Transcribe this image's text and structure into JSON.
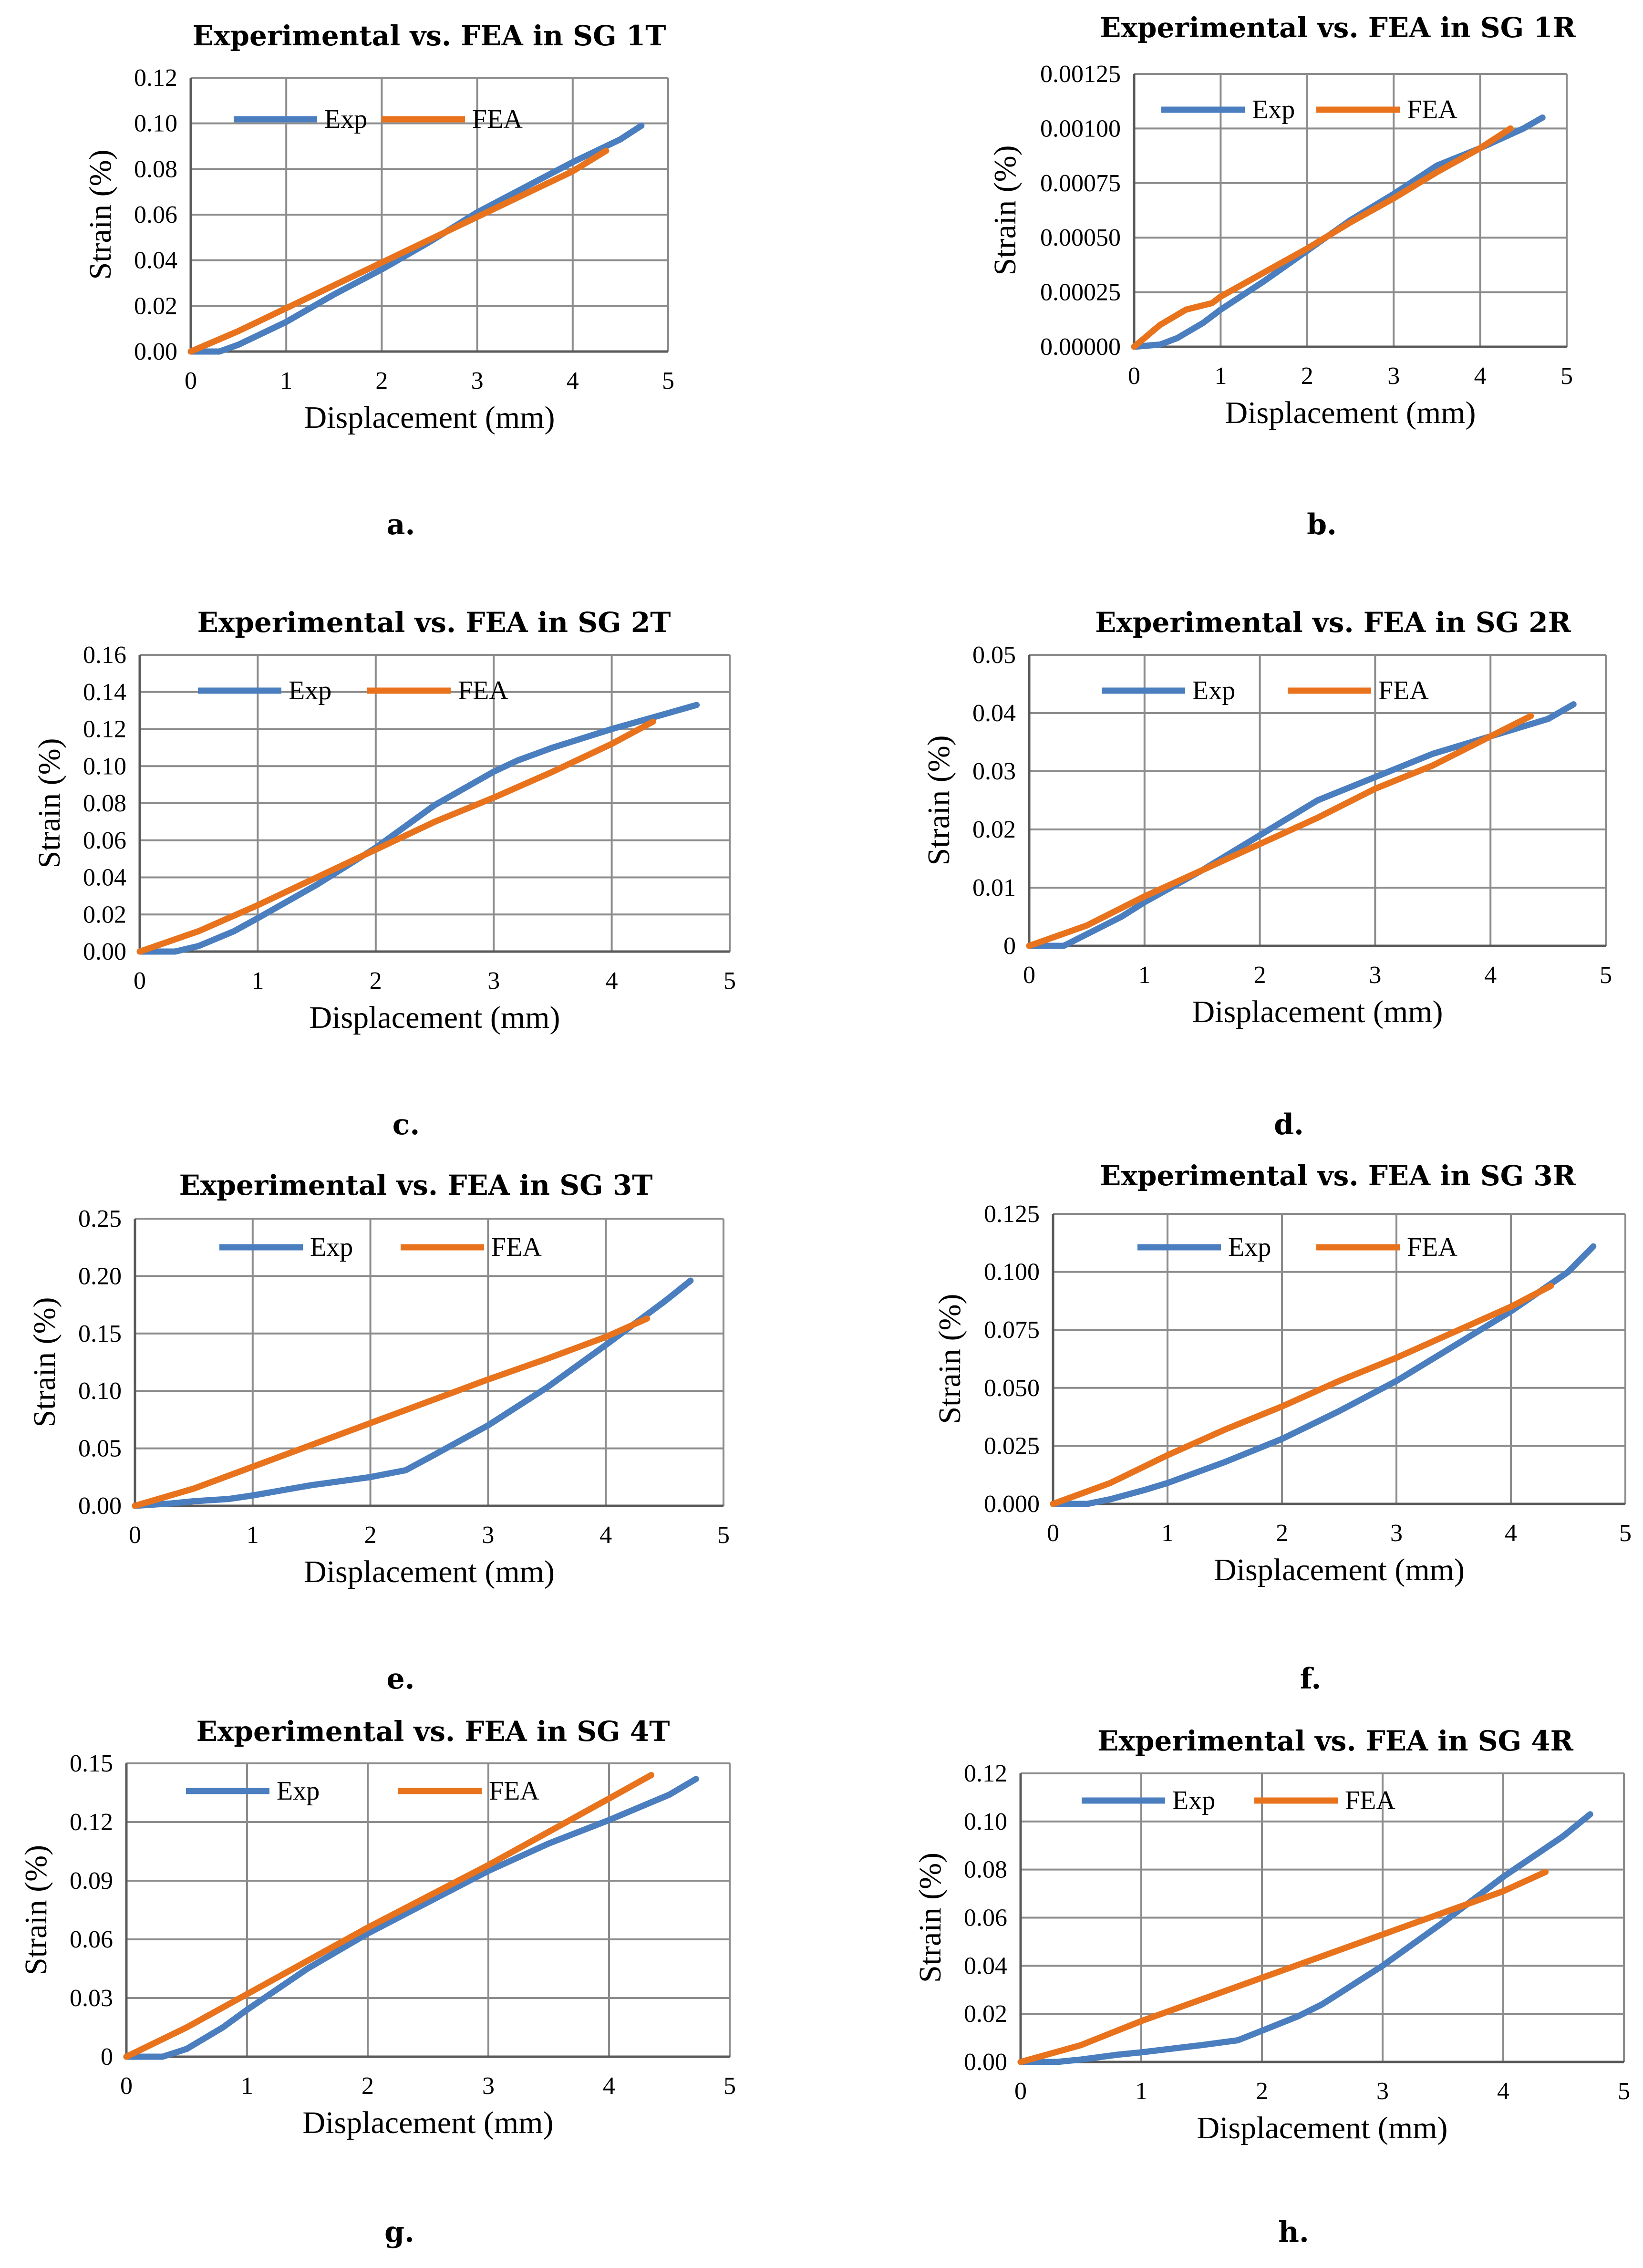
{
  "colors": {
    "exp": "#4a7ebf",
    "fea": "#e8731c",
    "grid": "#8c8c8c",
    "axis": "#595959"
  },
  "chart_data": [
    {
      "type": "line",
      "caption": "a.",
      "title": "Experimental vs. FEA in SG 1T",
      "xlabel": "Displacement (mm)",
      "ylabel": "Strain (%)",
      "xlim": [
        0,
        5
      ],
      "ylim": [
        0,
        0.12
      ],
      "xticks": [
        "0",
        "1",
        "2",
        "3",
        "4",
        "5"
      ],
      "yticks": [
        "0.00",
        "0.02",
        "0.04",
        "0.06",
        "0.08",
        "0.10",
        "0.12"
      ],
      "series": [
        {
          "name": "Exp",
          "x": [
            0,
            0.3,
            0.5,
            0.8,
            1.0,
            1.5,
            2.0,
            2.5,
            3.0,
            3.5,
            4.0,
            4.5,
            4.72
          ],
          "y": [
            0,
            0,
            0.003,
            0.009,
            0.013,
            0.025,
            0.036,
            0.048,
            0.061,
            0.072,
            0.083,
            0.093,
            0.099
          ]
        },
        {
          "name": "FEA",
          "x": [
            0,
            0.5,
            1.0,
            1.5,
            2.0,
            2.5,
            3.0,
            3.5,
            4.0,
            4.35
          ],
          "y": [
            0,
            0.009,
            0.019,
            0.029,
            0.039,
            0.049,
            0.059,
            0.069,
            0.079,
            0.088
          ]
        }
      ]
    },
    {
      "type": "line",
      "caption": "b.",
      "title": "Experimental vs. FEA in SG 1R",
      "xlabel": "Displacement (mm)",
      "ylabel": "Strain (%)",
      "xlim": [
        0,
        5
      ],
      "ylim": [
        0,
        0.00125
      ],
      "xticks": [
        "0",
        "1",
        "2",
        "3",
        "4",
        "5"
      ],
      "yticks": [
        "0.00000",
        "0.00025",
        "0.00050",
        "0.00075",
        "0.00100",
        "0.00125"
      ],
      "series": [
        {
          "name": "Exp",
          "x": [
            0,
            0.3,
            0.5,
            0.8,
            1.0,
            1.5,
            2.0,
            2.5,
            3.0,
            3.5,
            4.0,
            4.5,
            4.72
          ],
          "y": [
            0,
            1e-05,
            4e-05,
            0.00011,
            0.00017,
            0.0003,
            0.00044,
            0.00058,
            0.0007,
            0.00083,
            0.00091,
            0.001,
            0.00105
          ]
        },
        {
          "name": "FEA",
          "x": [
            0,
            0.3,
            0.6,
            0.9,
            1.0,
            1.5,
            2.0,
            2.5,
            3.0,
            3.5,
            4.0,
            4.35
          ],
          "y": [
            0,
            0.0001,
            0.00017,
            0.0002,
            0.00023,
            0.00034,
            0.00045,
            0.00057,
            0.00068,
            0.0008,
            0.00091,
            0.001
          ]
        }
      ]
    },
    {
      "type": "line",
      "caption": "c.",
      "title": "Experimental vs. FEA in SG 2T",
      "xlabel": "Displacement (mm)",
      "ylabel": "Strain (%)",
      "xlim": [
        0,
        5
      ],
      "ylim": [
        0,
        0.16
      ],
      "xticks": [
        "0",
        "1",
        "2",
        "3",
        "4",
        "5"
      ],
      "yticks": [
        "0.00",
        "0.02",
        "0.04",
        "0.06",
        "0.08",
        "0.10",
        "0.12",
        "0.14",
        "0.16"
      ],
      "series": [
        {
          "name": "Exp",
          "x": [
            0,
            0.3,
            0.5,
            0.8,
            1.0,
            1.5,
            2.0,
            2.5,
            3.0,
            3.2,
            3.5,
            4.0,
            4.5,
            4.72
          ],
          "y": [
            0,
            0,
            0.003,
            0.011,
            0.018,
            0.036,
            0.056,
            0.079,
            0.097,
            0.103,
            0.11,
            0.12,
            0.129,
            0.133
          ]
        },
        {
          "name": "FEA",
          "x": [
            0,
            0.5,
            1.0,
            1.5,
            2.0,
            2.5,
            3.0,
            3.5,
            4.0,
            4.35
          ],
          "y": [
            0,
            0.011,
            0.025,
            0.04,
            0.055,
            0.07,
            0.083,
            0.097,
            0.112,
            0.124
          ]
        }
      ]
    },
    {
      "type": "line",
      "caption": "d.",
      "title": "Experimental vs. FEA in SG 2R",
      "xlabel": "Displacement (mm)",
      "ylabel": "Strain (%)",
      "xlim": [
        0,
        5
      ],
      "ylim": [
        0,
        0.05
      ],
      "xticks": [
        "0",
        "1",
        "2",
        "3",
        "4",
        "5"
      ],
      "yticks": [
        "0",
        "0.01",
        "0.02",
        "0.03",
        "0.04",
        "0.05"
      ],
      "series": [
        {
          "name": "Exp",
          "x": [
            0,
            0.3,
            0.5,
            0.8,
            1.0,
            1.5,
            2.0,
            2.5,
            3.0,
            3.5,
            4.0,
            4.5,
            4.72
          ],
          "y": [
            0,
            0,
            0.002,
            0.005,
            0.0075,
            0.013,
            0.019,
            0.025,
            0.029,
            0.033,
            0.036,
            0.039,
            0.0415
          ]
        },
        {
          "name": "FEA",
          "x": [
            0,
            0.5,
            1.0,
            1.5,
            2.0,
            2.5,
            3.0,
            3.5,
            4.0,
            4.35
          ],
          "y": [
            0,
            0.0035,
            0.0085,
            0.013,
            0.0175,
            0.022,
            0.027,
            0.031,
            0.036,
            0.0395
          ]
        }
      ]
    },
    {
      "type": "line",
      "caption": "e.",
      "title": "Experimental vs. FEA in SG 3T",
      "xlabel": "Displacement (mm)",
      "ylabel": "Strain (%)",
      "xlim": [
        0,
        5
      ],
      "ylim": [
        0,
        0.25
      ],
      "xticks": [
        "0",
        "1",
        "2",
        "3",
        "4",
        "5"
      ],
      "yticks": [
        "0.00",
        "0.05",
        "0.10",
        "0.15",
        "0.20",
        "0.25"
      ],
      "series": [
        {
          "name": "Exp",
          "x": [
            0,
            0.3,
            0.5,
            0.8,
            1.0,
            1.5,
            2.0,
            2.3,
            2.5,
            3.0,
            3.5,
            4.0,
            4.5,
            4.72
          ],
          "y": [
            0,
            0.002,
            0.004,
            0.006,
            0.009,
            0.018,
            0.025,
            0.031,
            0.042,
            0.07,
            0.103,
            0.14,
            0.178,
            0.196
          ]
        },
        {
          "name": "FEA",
          "x": [
            0,
            0.5,
            1.0,
            1.5,
            2.0,
            2.5,
            3.0,
            3.5,
            4.0,
            4.35
          ],
          "y": [
            0,
            0.015,
            0.034,
            0.053,
            0.072,
            0.091,
            0.11,
            0.128,
            0.147,
            0.163
          ]
        }
      ]
    },
    {
      "type": "line",
      "caption": "f.",
      "title": "Experimental vs. FEA in SG 3R",
      "xlabel": "Displacement (mm)",
      "ylabel": "Strain (%)",
      "xlim": [
        0,
        5
      ],
      "ylim": [
        0,
        0.125
      ],
      "xticks": [
        "0",
        "1",
        "2",
        "3",
        "4",
        "5"
      ],
      "yticks": [
        "0.000",
        "0.025",
        "0.050",
        "0.075",
        "0.100",
        "0.125"
      ],
      "series": [
        {
          "name": "Exp",
          "x": [
            0,
            0.3,
            0.5,
            0.8,
            1.0,
            1.5,
            2.0,
            2.5,
            3.0,
            3.5,
            4.0,
            4.5,
            4.72
          ],
          "y": [
            0,
            0,
            0.002,
            0.006,
            0.009,
            0.018,
            0.028,
            0.04,
            0.053,
            0.068,
            0.083,
            0.1,
            0.111
          ]
        },
        {
          "name": "FEA",
          "x": [
            0,
            0.5,
            1.0,
            1.5,
            2.0,
            2.5,
            3.0,
            3.5,
            4.0,
            4.35
          ],
          "y": [
            0,
            0.009,
            0.021,
            0.032,
            0.042,
            0.053,
            0.063,
            0.074,
            0.085,
            0.094
          ]
        }
      ]
    },
    {
      "type": "line",
      "caption": "g.",
      "title": "Experimental vs. FEA in SG 4T",
      "xlabel": "Displacement (mm)",
      "ylabel": "Strain (%)",
      "xlim": [
        0,
        5
      ],
      "ylim": [
        0,
        0.15
      ],
      "xticks": [
        "0",
        "1",
        "2",
        "3",
        "4",
        "5"
      ],
      "yticks": [
        "0",
        "0.03",
        "0.06",
        "0.09",
        "0.12",
        "0.15"
      ],
      "series": [
        {
          "name": "Exp",
          "x": [
            0,
            0.3,
            0.5,
            0.8,
            1.0,
            1.5,
            2.0,
            2.5,
            3.0,
            3.5,
            4.0,
            4.5,
            4.72
          ],
          "y": [
            0,
            0,
            0.004,
            0.015,
            0.024,
            0.045,
            0.063,
            0.079,
            0.095,
            0.109,
            0.121,
            0.134,
            0.142
          ]
        },
        {
          "name": "FEA",
          "x": [
            0,
            0.5,
            1.0,
            1.5,
            2.0,
            2.5,
            3.0,
            3.5,
            4.0,
            4.35
          ],
          "y": [
            0,
            0.015,
            0.032,
            0.049,
            0.066,
            0.082,
            0.098,
            0.115,
            0.132,
            0.144
          ]
        }
      ]
    },
    {
      "type": "line",
      "caption": "h.",
      "title": "Experimental vs. FEA in SG 4R",
      "xlabel": "Displacement (mm)",
      "ylabel": "Strain (%)",
      "xlim": [
        0,
        5
      ],
      "ylim": [
        0,
        0.12
      ],
      "xticks": [
        "0",
        "1",
        "2",
        "3",
        "4",
        "5"
      ],
      "yticks": [
        "0.00",
        "0.02",
        "0.04",
        "0.06",
        "0.08",
        "0.10",
        "0.12"
      ],
      "series": [
        {
          "name": "Exp",
          "x": [
            0,
            0.3,
            0.5,
            0.8,
            1.0,
            1.5,
            1.8,
            2.0,
            2.3,
            2.5,
            3.0,
            3.5,
            4.0,
            4.5,
            4.72
          ],
          "y": [
            0,
            0,
            0.001,
            0.003,
            0.004,
            0.007,
            0.009,
            0.013,
            0.019,
            0.024,
            0.04,
            0.058,
            0.077,
            0.094,
            0.103
          ]
        },
        {
          "name": "FEA",
          "x": [
            0,
            0.5,
            1.0,
            1.5,
            2.0,
            2.5,
            3.0,
            3.5,
            4.0,
            4.35
          ],
          "y": [
            0,
            0.007,
            0.017,
            0.026,
            0.035,
            0.044,
            0.053,
            0.062,
            0.071,
            0.079
          ]
        }
      ]
    }
  ]
}
